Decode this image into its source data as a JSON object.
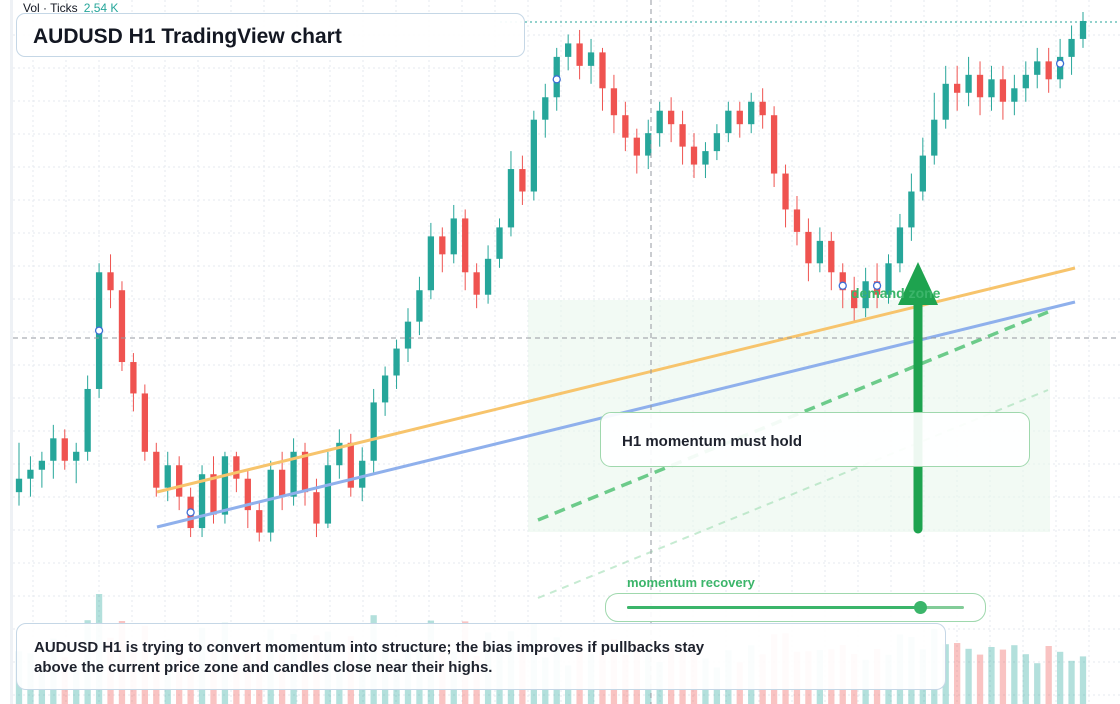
{
  "volume": {
    "label": "Vol · Ticks",
    "value": "2,54 K"
  },
  "header": {
    "title": "AUDUSD H1 TradingView chart"
  },
  "annotations": {
    "note": "H1 momentum must hold",
    "zone_label": "demand zone",
    "recovery_label": "momentum recovery",
    "recovery_level": 0.87,
    "summary": "AUDUSD H1 is trying to convert momentum into structure; the bias improves if pullbacks stay above the current price zone and candles close near their highs."
  },
  "colors": {
    "up": "#26a69a",
    "down": "#ef5350",
    "ema_fast": "#f7c46c",
    "ema_slow": "#8fb0ec",
    "accent": "#1ea34f",
    "zone": "#e9f7ec"
  },
  "icons": [
    "arrow-up-icon"
  ],
  "chart_data": {
    "type": "candlestick",
    "symbol": "AUDUSD",
    "timeframe": "H1",
    "grid": true,
    "candles": [
      [
        19,
        22,
        16,
        30
      ],
      [
        22,
        24,
        18,
        27
      ],
      [
        24,
        26,
        20,
        28
      ],
      [
        26,
        31,
        22,
        34
      ],
      [
        31,
        26,
        24,
        33
      ],
      [
        26,
        28,
        21,
        30
      ],
      [
        28,
        42,
        26,
        45
      ],
      [
        42,
        68,
        40,
        70
      ],
      [
        68,
        64,
        60,
        72
      ],
      [
        64,
        48,
        46,
        66
      ],
      [
        48,
        41,
        37,
        50
      ],
      [
        41,
        28,
        26,
        43
      ],
      [
        28,
        20,
        18,
        30
      ],
      [
        20,
        25,
        17,
        28
      ],
      [
        25,
        18,
        15,
        27
      ],
      [
        18,
        11,
        9,
        20
      ],
      [
        11,
        23,
        9,
        25
      ],
      [
        23,
        14,
        12,
        27
      ],
      [
        14,
        27,
        12,
        28
      ],
      [
        27,
        22,
        19,
        28
      ],
      [
        22,
        15,
        11,
        24
      ],
      [
        15,
        10,
        8,
        17
      ],
      [
        10,
        24,
        8,
        26
      ],
      [
        24,
        18,
        15,
        28
      ],
      [
        18,
        28,
        16,
        31
      ],
      [
        28,
        19,
        16,
        30
      ],
      [
        19,
        12,
        9,
        22
      ],
      [
        12,
        25,
        11,
        28
      ],
      [
        25,
        30,
        22,
        33
      ],
      [
        30,
        20,
        18,
        32
      ],
      [
        20,
        26,
        17,
        29
      ],
      [
        26,
        39,
        23,
        42
      ],
      [
        39,
        45,
        36,
        47
      ],
      [
        45,
        51,
        42,
        53
      ],
      [
        51,
        57,
        48,
        60
      ],
      [
        57,
        64,
        54,
        67
      ],
      [
        64,
        76,
        62,
        79
      ],
      [
        76,
        72,
        68,
        78
      ],
      [
        72,
        80,
        70,
        83
      ],
      [
        80,
        68,
        64,
        82
      ],
      [
        68,
        63,
        60,
        70
      ],
      [
        63,
        71,
        61,
        74
      ],
      [
        71,
        78,
        69,
        80
      ],
      [
        78,
        91,
        76,
        95
      ],
      [
        91,
        86,
        83,
        94
      ],
      [
        86,
        102,
        84,
        104
      ],
      [
        102,
        107,
        98,
        110
      ],
      [
        107,
        116,
        104,
        118
      ],
      [
        116,
        119,
        113,
        121
      ],
      [
        119,
        114,
        111,
        122
      ],
      [
        114,
        117,
        110,
        120
      ],
      [
        117,
        109,
        104,
        118
      ],
      [
        109,
        103,
        99,
        112
      ],
      [
        103,
        98,
        95,
        106
      ],
      [
        98,
        94,
        90,
        100
      ],
      [
        94,
        99,
        91,
        102
      ],
      [
        99,
        104,
        96,
        106
      ],
      [
        104,
        101,
        97,
        107
      ],
      [
        101,
        96,
        92,
        104
      ],
      [
        96,
        92,
        89,
        99
      ],
      [
        92,
        95,
        89,
        97
      ],
      [
        95,
        99,
        93,
        101
      ],
      [
        99,
        104,
        97,
        106
      ],
      [
        104,
        101,
        98,
        106
      ],
      [
        101,
        106,
        99,
        108
      ],
      [
        106,
        103,
        100,
        109
      ],
      [
        103,
        90,
        87,
        105
      ],
      [
        90,
        82,
        78,
        92
      ],
      [
        82,
        77,
        74,
        85
      ],
      [
        77,
        70,
        66,
        80
      ],
      [
        70,
        75,
        68,
        78
      ],
      [
        75,
        68,
        64,
        77
      ],
      [
        68,
        64,
        60,
        70
      ],
      [
        64,
        60,
        57,
        67
      ],
      [
        60,
        66,
        58,
        69
      ],
      [
        66,
        63,
        60,
        70
      ],
      [
        63,
        70,
        61,
        72
      ],
      [
        70,
        78,
        68,
        81
      ],
      [
        78,
        86,
        75,
        90
      ],
      [
        86,
        94,
        84,
        98
      ],
      [
        94,
        102,
        92,
        108
      ],
      [
        102,
        110,
        100,
        114
      ],
      [
        110,
        108,
        104,
        114
      ],
      [
        108,
        112,
        105,
        116
      ],
      [
        112,
        107,
        103,
        115
      ],
      [
        107,
        111,
        104,
        114
      ],
      [
        111,
        106,
        102,
        114
      ],
      [
        106,
        109,
        103,
        112
      ],
      [
        109,
        112,
        106,
        115
      ],
      [
        112,
        115,
        109,
        118
      ],
      [
        115,
        111,
        108,
        118
      ],
      [
        111,
        116,
        109,
        120
      ],
      [
        116,
        120,
        112,
        123
      ],
      [
        120,
        124,
        118,
        126
      ]
    ]
  }
}
